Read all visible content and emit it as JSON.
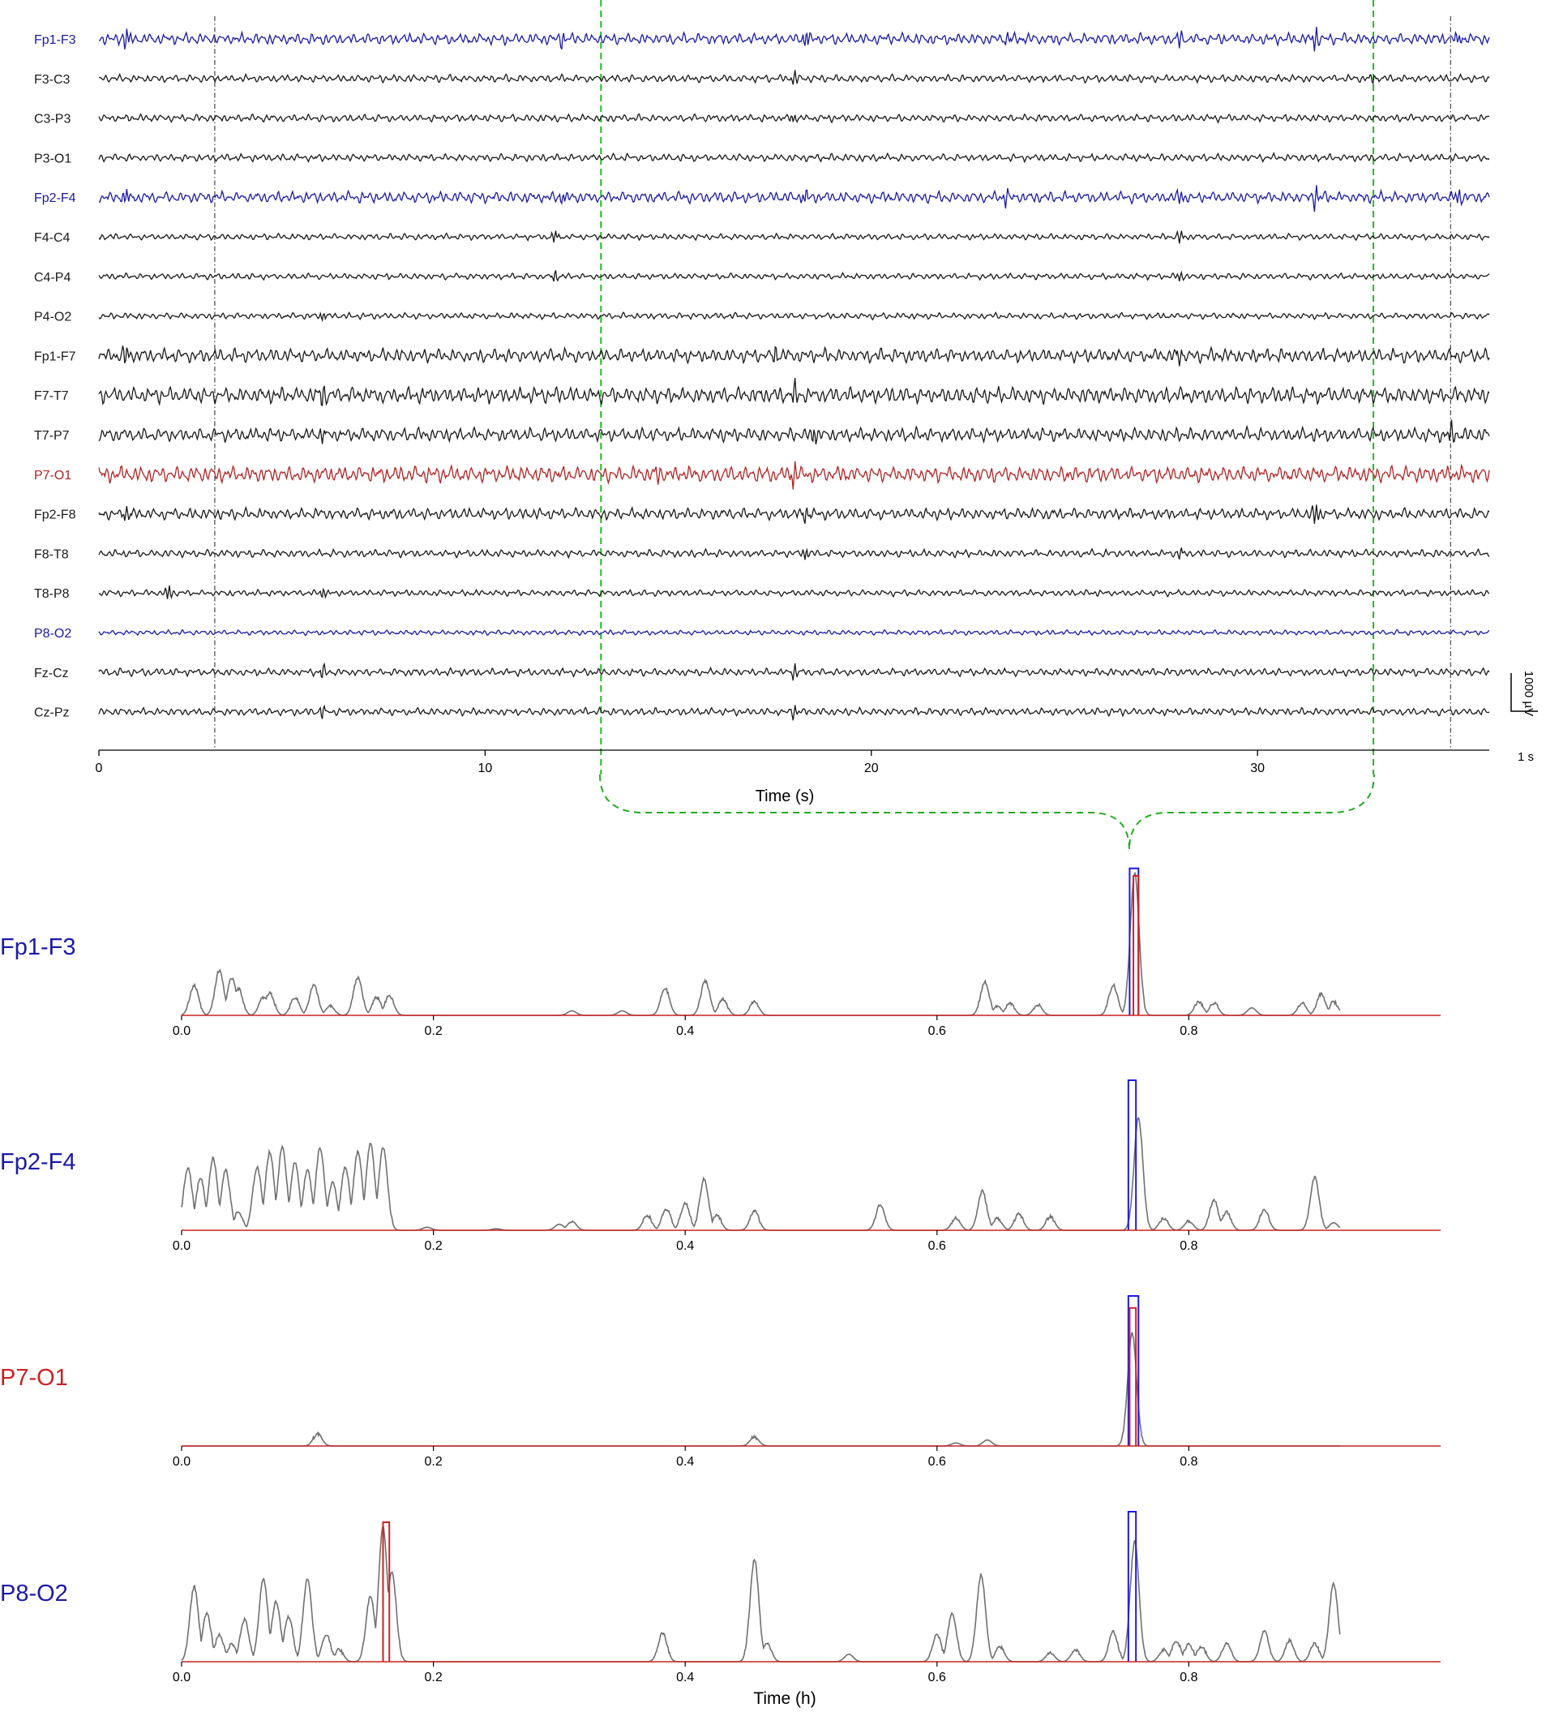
{
  "chart_data": [
    {
      "type": "line",
      "panel": "eeg-montage",
      "xlabel": "Time (s)",
      "xlim": [
        0,
        36
      ],
      "x_ticks": [
        0,
        10,
        20,
        30
      ],
      "channels": [
        {
          "name": "Fp1-F3",
          "color": "#1a1aa6",
          "amp": 9,
          "spikes": [
            [
              0.7,
              15
            ],
            [
              12,
              9
            ],
            [
              18.3,
              14
            ],
            [
              23.5,
              10
            ],
            [
              28,
              9
            ],
            [
              31.5,
              14
            ],
            [
              35.2,
              9
            ]
          ]
        },
        {
          "name": "F3-C3",
          "color": "#1a1a1a",
          "amp": 6,
          "spikes": [
            [
              18,
              9
            ],
            [
              33,
              7
            ]
          ]
        },
        {
          "name": "C3-P3",
          "color": "#1a1a1a",
          "amp": 6,
          "spikes": [
            [
              18,
              8
            ]
          ]
        },
        {
          "name": "P3-O1",
          "color": "#1a1a1a",
          "amp": 6,
          "spikes": []
        },
        {
          "name": "Fp2-F4",
          "color": "#1a1aa6",
          "amp": 9,
          "spikes": [
            [
              0.7,
              14
            ],
            [
              12,
              9
            ],
            [
              18.3,
              13
            ],
            [
              23.5,
              10
            ],
            [
              28,
              9
            ],
            [
              31.5,
              14
            ],
            [
              35.2,
              9
            ]
          ]
        },
        {
          "name": "F4-C4",
          "color": "#1a1a1a",
          "amp": 5,
          "spikes": [
            [
              11.8,
              10
            ],
            [
              28,
              7
            ]
          ]
        },
        {
          "name": "C4-P4",
          "color": "#1a1a1a",
          "amp": 5,
          "spikes": [
            [
              11.8,
              9
            ],
            [
              28,
              7
            ]
          ]
        },
        {
          "name": "P4-O2",
          "color": "#1a1a1a",
          "amp": 5,
          "spikes": [
            [
              5.8,
              7
            ]
          ]
        },
        {
          "name": "Fp1-F7",
          "color": "#1a1a1a",
          "amp": 11,
          "spikes": [
            [
              0.7,
              10
            ],
            [
              17.5,
              14
            ],
            [
              28,
              12
            ]
          ]
        },
        {
          "name": "F7-T7",
          "color": "#1a1a1a",
          "amp": 13,
          "spikes": [
            [
              5.8,
              10
            ],
            [
              18,
              14
            ]
          ]
        },
        {
          "name": "T7-P7",
          "color": "#1a1a1a",
          "amp": 11,
          "spikes": [
            [
              5.8,
              10
            ],
            [
              18.5,
              10
            ],
            [
              35,
              12
            ]
          ]
        },
        {
          "name": "P7-O1",
          "color": "#b22222",
          "amp": 13,
          "spikes": [
            [
              18,
              16
            ],
            [
              14.5,
              10
            ]
          ]
        },
        {
          "name": "Fp2-F8",
          "color": "#1a1a1a",
          "amp": 9,
          "spikes": [
            [
              0.7,
              12
            ],
            [
              18.3,
              12
            ],
            [
              31.5,
              14
            ]
          ]
        },
        {
          "name": "F8-T8",
          "color": "#1a1a1a",
          "amp": 6,
          "spikes": [
            [
              18.3,
              9
            ],
            [
              28,
              7
            ]
          ]
        },
        {
          "name": "T8-P8",
          "color": "#1a1a1a",
          "amp": 5,
          "spikes": [
            [
              1.8,
              10
            ],
            [
              5.8,
              8
            ]
          ]
        },
        {
          "name": "P8-O2",
          "color": "#1a1aa6",
          "amp": 4,
          "spikes": []
        },
        {
          "name": "Fz-Cz",
          "color": "#1a1a1a",
          "amp": 6,
          "spikes": [
            [
              5.8,
              8
            ],
            [
              18,
              9
            ]
          ]
        },
        {
          "name": "Cz-Pz",
          "color": "#1a1a1a",
          "amp": 6,
          "spikes": [
            [
              5.8,
              8
            ],
            [
              18,
              8
            ]
          ]
        }
      ],
      "event_lines_gray_s": [
        3,
        35
      ],
      "selection_green_s": [
        13,
        33
      ],
      "scale_bar": {
        "vertical_label": "1000 µV",
        "horizontal_label": "1 s"
      }
    },
    {
      "type": "line",
      "panel": "probability-traces",
      "xlabel": "Time (h)",
      "xlim": [
        0,
        1.0
      ],
      "x_ticks": [
        "0.0",
        "0.2",
        "0.4",
        "0.6",
        "0.8"
      ],
      "trace_color": "#707070",
      "red_color": "#cc2222",
      "blue_color": "#1a1aee",
      "subplots": [
        {
          "name": "Fp1-F3",
          "color": "#1a1aa6",
          "blue_box": [
            0.753,
            0.76,
            0.98
          ],
          "red_box": [
            0.756,
            0.76,
            0.93
          ],
          "peaks": [
            [
              0.01,
              0.2
            ],
            [
              0.03,
              0.3
            ],
            [
              0.04,
              0.25
            ],
            [
              0.045,
              0.18
            ],
            [
              0.065,
              0.12
            ],
            [
              0.07,
              0.15
            ],
            [
              0.09,
              0.12
            ],
            [
              0.105,
              0.2
            ],
            [
              0.118,
              0.06
            ],
            [
              0.14,
              0.25
            ],
            [
              0.155,
              0.12
            ],
            [
              0.165,
              0.13
            ],
            [
              0.31,
              0.03
            ],
            [
              0.35,
              0.03
            ],
            [
              0.384,
              0.18
            ],
            [
              0.416,
              0.23
            ],
            [
              0.43,
              0.11
            ],
            [
              0.455,
              0.09
            ],
            [
              0.638,
              0.22
            ],
            [
              0.648,
              0.06
            ],
            [
              0.658,
              0.08
            ],
            [
              0.68,
              0.07
            ],
            [
              0.74,
              0.2
            ],
            [
              0.757,
              0.95
            ],
            [
              0.808,
              0.09
            ],
            [
              0.82,
              0.08
            ],
            [
              0.85,
              0.05
            ],
            [
              0.89,
              0.08
            ],
            [
              0.905,
              0.14
            ],
            [
              0.915,
              0.09
            ]
          ]
        },
        {
          "name": "Fp2-F4",
          "color": "#1a1aa6",
          "blue_box": [
            0.752,
            0.758,
            1.0
          ],
          "red_box": null,
          "peaks": [
            [
              0.005,
              0.42
            ],
            [
              0.015,
              0.35
            ],
            [
              0.025,
              0.48
            ],
            [
              0.035,
              0.4
            ],
            [
              0.045,
              0.12
            ],
            [
              0.06,
              0.42
            ],
            [
              0.07,
              0.52
            ],
            [
              0.08,
              0.55
            ],
            [
              0.09,
              0.45
            ],
            [
              0.1,
              0.4
            ],
            [
              0.11,
              0.55
            ],
            [
              0.12,
              0.32
            ],
            [
              0.13,
              0.42
            ],
            [
              0.14,
              0.52
            ],
            [
              0.15,
              0.58
            ],
            [
              0.16,
              0.55
            ],
            [
              0.195,
              0.02
            ],
            [
              0.25,
              0.01
            ],
            [
              0.3,
              0.04
            ],
            [
              0.31,
              0.06
            ],
            [
              0.37,
              0.1
            ],
            [
              0.385,
              0.14
            ],
            [
              0.4,
              0.18
            ],
            [
              0.415,
              0.34
            ],
            [
              0.425,
              0.1
            ],
            [
              0.455,
              0.13
            ],
            [
              0.555,
              0.17
            ],
            [
              0.615,
              0.08
            ],
            [
              0.636,
              0.26
            ],
            [
              0.648,
              0.08
            ],
            [
              0.665,
              0.11
            ],
            [
              0.69,
              0.09
            ],
            [
              0.76,
              0.75
            ],
            [
              0.78,
              0.08
            ],
            [
              0.8,
              0.06
            ],
            [
              0.82,
              0.2
            ],
            [
              0.83,
              0.12
            ],
            [
              0.86,
              0.14
            ],
            [
              0.9,
              0.35
            ],
            [
              0.915,
              0.05
            ]
          ]
        },
        {
          "name": "P7-O1",
          "color": "#cc2222",
          "blue_box": [
            0.752,
            0.76,
            1.0
          ],
          "red_box": [
            0.753,
            0.758,
            0.92
          ],
          "peaks": [
            [
              0.108,
              0.08
            ],
            [
              0.455,
              0.06
            ],
            [
              0.615,
              0.02
            ],
            [
              0.64,
              0.04
            ],
            [
              0.755,
              0.75
            ]
          ]
        },
        {
          "name": "P8-O2",
          "color": "#1a1aa6",
          "blue_box": [
            0.752,
            0.758,
            1.0
          ],
          "red_box": [
            0.16,
            0.165,
            0.93
          ],
          "peaks": [
            [
              0.01,
              0.5
            ],
            [
              0.02,
              0.32
            ],
            [
              0.03,
              0.18
            ],
            [
              0.04,
              0.12
            ],
            [
              0.05,
              0.28
            ],
            [
              0.065,
              0.55
            ],
            [
              0.075,
              0.4
            ],
            [
              0.085,
              0.3
            ],
            [
              0.1,
              0.55
            ],
            [
              0.115,
              0.18
            ],
            [
              0.125,
              0.08
            ],
            [
              0.15,
              0.44
            ],
            [
              0.16,
              0.9
            ],
            [
              0.167,
              0.6
            ],
            [
              0.382,
              0.19
            ],
            [
              0.455,
              0.68
            ],
            [
              0.465,
              0.12
            ],
            [
              0.53,
              0.05
            ],
            [
              0.6,
              0.18
            ],
            [
              0.612,
              0.32
            ],
            [
              0.635,
              0.58
            ],
            [
              0.65,
              0.1
            ],
            [
              0.69,
              0.06
            ],
            [
              0.71,
              0.08
            ],
            [
              0.74,
              0.2
            ],
            [
              0.757,
              0.8
            ],
            [
              0.78,
              0.08
            ],
            [
              0.79,
              0.14
            ],
            [
              0.8,
              0.12
            ],
            [
              0.81,
              0.1
            ],
            [
              0.83,
              0.12
            ],
            [
              0.86,
              0.2
            ],
            [
              0.88,
              0.14
            ],
            [
              0.9,
              0.12
            ],
            [
              0.915,
              0.52
            ]
          ]
        }
      ]
    }
  ]
}
